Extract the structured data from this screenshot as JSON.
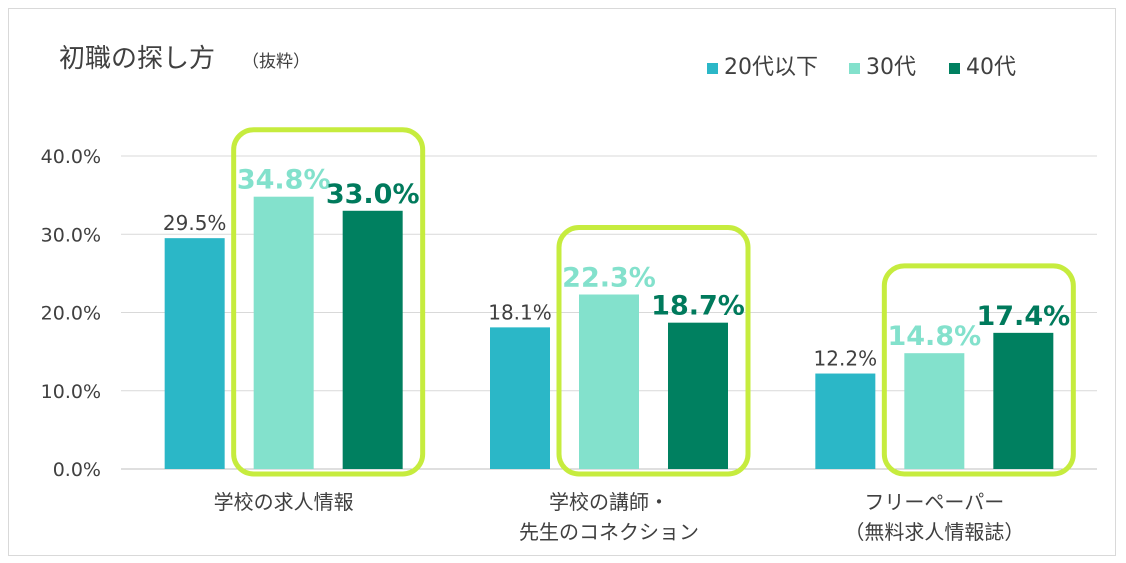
{
  "chart_data": {
    "type": "bar",
    "title": "初職の探し方",
    "subtitle": "（抜粋）",
    "categories": [
      [
        "学校の求人情報"
      ],
      [
        "学校の講師・",
        "先生のコネクション"
      ],
      [
        "フリーペーパー",
        "（無料求人情報誌）"
      ]
    ],
    "series": [
      {
        "name": "20代以下",
        "color": "#2bb7c7",
        "values": [
          29.5,
          18.1,
          12.2
        ],
        "labels": [
          "29.5%",
          "18.1%",
          "12.2%"
        ],
        "label_style": "plain",
        "label_color": "#404040"
      },
      {
        "name": "30代",
        "color": "#83e1cc",
        "values": [
          34.8,
          22.3,
          14.8
        ],
        "labels": [
          "34.8%",
          "22.3%",
          "14.8%"
        ],
        "label_style": "bold",
        "label_color": "#83e1cc"
      },
      {
        "name": "40代",
        "color": "#008060",
        "values": [
          33.0,
          18.7,
          17.4
        ],
        "labels": [
          "33.0%",
          "18.7%",
          "17.4%"
        ],
        "label_style": "bold",
        "label_color": "#007a5c"
      }
    ],
    "y_ticks": [
      "0.0%",
      "10.0%",
      "20.0%",
      "30.0%",
      "40.0%"
    ],
    "ylim": [
      0,
      40
    ],
    "grid": true,
    "legend_position": "top-right",
    "highlight_color": "#c6ec3e",
    "xlabel": "",
    "ylabel": ""
  }
}
